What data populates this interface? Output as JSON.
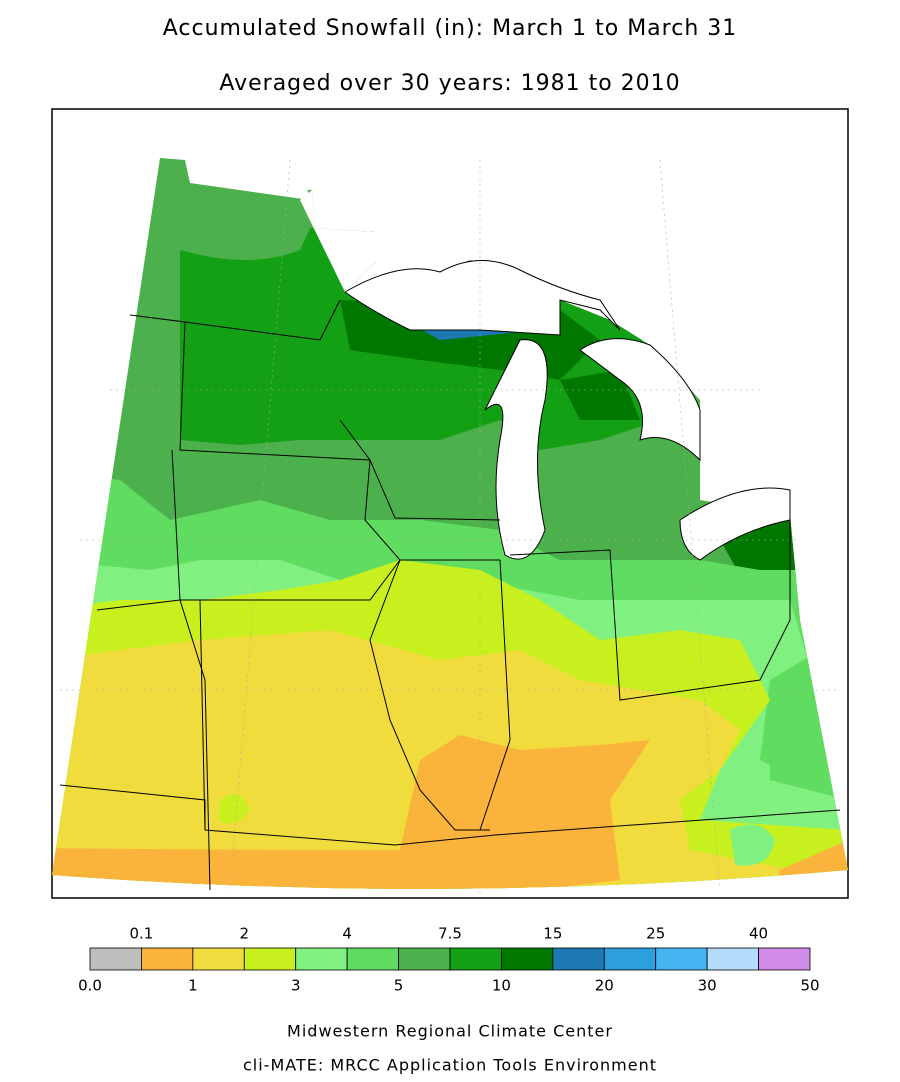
{
  "header": {
    "title": "Accumulated Snowfall (in): March 1 to March 31",
    "subtitle": "Averaged over 30 years: 1981 to 2010"
  },
  "legend": {
    "breaks": [
      {
        "value": 0,
        "label": "0.0"
      },
      0.1,
      1,
      2,
      3,
      4,
      5,
      7.5,
      10,
      15,
      20,
      25,
      30,
      40,
      50
    ],
    "colors": [
      "#bebebe",
      "#fab43c",
      "#f0dc3c",
      "#c8f01e",
      "#80f080",
      "#60dc60",
      "#4cb04c",
      "#14a014",
      "#007800",
      "#1e78b4",
      "#2d9fdc",
      "#46b4f0",
      "#b4dcfa",
      "#d08ce8"
    ]
  },
  "footer": {
    "line1": "Midwestern Regional Climate Center",
    "line2": "cli-MATE: MRCC Application Tools Environment"
  }
}
